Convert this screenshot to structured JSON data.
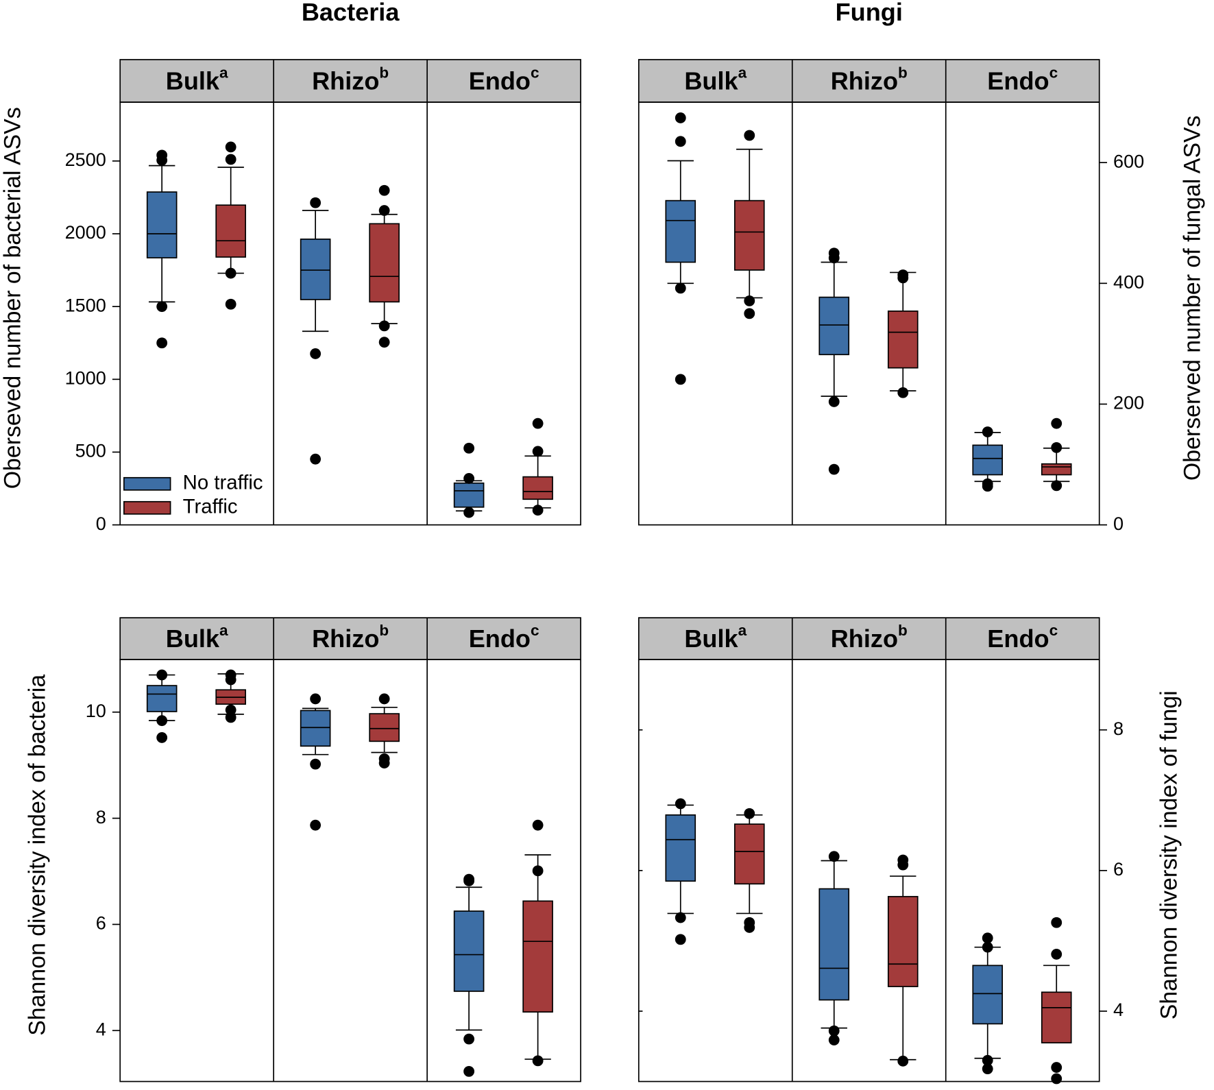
{
  "chart_data": [
    {
      "type": "box",
      "title": "Bacteria",
      "y_label": "Oberseved number of bacterial ASVs",
      "axis_side": "left",
      "ylim": [
        0,
        2904
      ],
      "yticks": [
        0,
        500,
        1000,
        1500,
        2000,
        2500
      ],
      "legend": "lower left",
      "facets": [
        {
          "label": "Bulk",
          "sup": "a"
        },
        {
          "label": "Rhizo",
          "sup": "b"
        },
        {
          "label": "Endo",
          "sup": "c"
        }
      ],
      "series": [
        {
          "name": "No traffic",
          "color": "#3d6ea5",
          "boxes": [
            {
              "whisker_low": 1532,
              "q1": 1835,
              "median": 2000,
              "q3": 2287,
              "whisker_high": 2468,
              "outliers": [
                2540,
                2505,
                1500,
                1250
              ]
            },
            {
              "whisker_low": 1330,
              "q1": 1548,
              "median": 1750,
              "q3": 1963,
              "whisker_high": 2160,
              "outliers": [
                2213,
                1176,
                452
              ]
            },
            {
              "whisker_low": 96,
              "q1": 122,
              "median": 234,
              "q3": 287,
              "whisker_high": 303,
              "outliers": [
                527,
                319,
                85
              ]
            }
          ]
        },
        {
          "name": "Traffic",
          "color": "#a33b3b",
          "boxes": [
            {
              "whisker_low": 1729,
              "q1": 1840,
              "median": 1952,
              "q3": 2197,
              "whisker_high": 2457,
              "outliers": [
                2596,
                2511,
                1729,
                1516
              ]
            },
            {
              "whisker_low": 1383,
              "q1": 1532,
              "median": 1707,
              "q3": 2069,
              "whisker_high": 2133,
              "outliers": [
                2298,
                2160,
                1367,
                1255
              ]
            },
            {
              "whisker_low": 117,
              "q1": 176,
              "median": 229,
              "q3": 330,
              "whisker_high": 473,
              "outliers": [
                697,
                505,
                101
              ]
            }
          ]
        }
      ]
    },
    {
      "type": "box",
      "title": "Fungi",
      "y_label": "Oberserved number of fungal ASVs",
      "axis_side": "right",
      "ylim": [
        0,
        700
      ],
      "yticks": [
        0,
        200,
        400,
        600
      ],
      "facets": [
        {
          "label": "Bulk",
          "sup": "a"
        },
        {
          "label": "Rhizo",
          "sup": "b"
        },
        {
          "label": "Endo",
          "sup": "c"
        }
      ],
      "series": [
        {
          "color": "#3d6ea5",
          "boxes": [
            {
              "whisker_low": 400,
              "q1": 435,
              "median": 504,
              "q3": 537,
              "whisker_high": 603,
              "outliers": [
                674,
                635,
                392,
                241
              ]
            },
            {
              "whisker_low": 213,
              "q1": 282,
              "median": 331,
              "q3": 377,
              "whisker_high": 435,
              "outliers": [
                450,
                442,
                204,
                92
              ]
            },
            {
              "whisker_low": 72,
              "q1": 83,
              "median": 110,
              "q3": 132,
              "whisker_high": 153,
              "outliers": [
                154,
                68,
                64
              ]
            }
          ]
        },
        {
          "color": "#a33b3b",
          "boxes": [
            {
              "whisker_low": 376,
              "q1": 422,
              "median": 485,
              "q3": 537,
              "whisker_high": 622,
              "outliers": [
                645,
                371,
                350
              ]
            },
            {
              "whisker_low": 222,
              "q1": 260,
              "median": 319,
              "q3": 354,
              "whisker_high": 418,
              "outliers": [
                414,
                409,
                219
              ]
            },
            {
              "whisker_low": 72,
              "q1": 83,
              "median": 96,
              "q3": 101,
              "whisker_high": 127,
              "outliers": [
                168,
                128,
                65
              ]
            }
          ]
        }
      ]
    },
    {
      "type": "box",
      "y_label": "Shannon diversity index of bacteria",
      "axis_side": "left",
      "ylim": [
        3.04,
        10.99
      ],
      "yticks": [
        4,
        6,
        8,
        10
      ],
      "facets": [
        {
          "label": "Bulk",
          "sup": "a"
        },
        {
          "label": "Rhizo",
          "sup": "b"
        },
        {
          "label": "Endo",
          "sup": "c"
        }
      ],
      "series": [
        {
          "color": "#3d6ea5",
          "boxes": [
            {
              "whisker_low": 9.84,
              "q1": 10.01,
              "median": 10.34,
              "q3": 10.5,
              "whisker_high": 10.7,
              "outliers": [
                10.7,
                9.84,
                9.52
              ]
            },
            {
              "whisker_low": 9.2,
              "q1": 9.36,
              "median": 9.71,
              "q3": 10.03,
              "whisker_high": 10.07,
              "outliers": [
                10.25,
                9.02,
                7.87
              ]
            },
            {
              "whisker_low": 4.01,
              "q1": 4.74,
              "median": 5.43,
              "q3": 6.25,
              "whisker_high": 6.7,
              "outliers": [
                6.85,
                6.82,
                3.84,
                3.23
              ]
            }
          ]
        },
        {
          "color": "#a33b3b",
          "boxes": [
            {
              "whisker_low": 9.96,
              "q1": 10.15,
              "median": 10.28,
              "q3": 10.42,
              "whisker_high": 10.72,
              "outliers": [
                10.7,
                10.61,
                10.04,
                9.9
              ]
            },
            {
              "whisker_low": 9.24,
              "q1": 9.45,
              "median": 9.69,
              "q3": 9.97,
              "whisker_high": 10.09,
              "outliers": [
                10.25,
                9.12,
                9.04
              ]
            },
            {
              "whisker_low": 3.46,
              "q1": 4.35,
              "median": 5.68,
              "q3": 6.44,
              "whisker_high": 7.31,
              "outliers": [
                7.87,
                7.01,
                3.43
              ]
            }
          ]
        }
      ]
    },
    {
      "type": "box",
      "y_label": "Shannon diversity index of fungi",
      "axis_side": "right",
      "mirror_ticks": true,
      "ylim": [
        3,
        9
      ],
      "yticks": [
        4,
        6,
        8
      ],
      "facets": [
        {
          "label": "Bulk",
          "sup": "a"
        },
        {
          "label": "Rhizo",
          "sup": "b"
        },
        {
          "label": "Endo",
          "sup": "c"
        }
      ],
      "series": [
        {
          "color": "#3d6ea5",
          "boxes": [
            {
              "whisker_low": 5.39,
              "q1": 5.85,
              "median": 6.44,
              "q3": 6.79,
              "whisker_high": 6.93,
              "outliers": [
                6.95,
                5.33,
                5.02
              ]
            },
            {
              "whisker_low": 3.76,
              "q1": 4.16,
              "median": 4.61,
              "q3": 5.74,
              "whisker_high": 6.14,
              "outliers": [
                6.2,
                3.72,
                3.59
              ]
            },
            {
              "whisker_low": 3.33,
              "q1": 3.82,
              "median": 4.25,
              "q3": 4.65,
              "whisker_high": 4.91,
              "outliers": [
                5.04,
                4.91,
                3.3,
                3.18
              ]
            }
          ]
        },
        {
          "color": "#a33b3b",
          "boxes": [
            {
              "whisker_low": 5.39,
              "q1": 5.81,
              "median": 6.27,
              "q3": 6.66,
              "whisker_high": 6.79,
              "outliers": [
                6.81,
                5.26,
                5.19
              ]
            },
            {
              "whisker_low": 3.31,
              "q1": 4.35,
              "median": 4.67,
              "q3": 5.63,
              "whisker_high": 5.92,
              "outliers": [
                6.15,
                6.08,
                3.29
              ]
            },
            {
              "whisker_low": 3.55,
              "q1": 3.55,
              "median": 4.05,
              "q3": 4.27,
              "whisker_high": 4.65,
              "outliers": [
                5.26,
                4.81,
                3.2,
                3.04
              ]
            }
          ]
        }
      ]
    }
  ]
}
